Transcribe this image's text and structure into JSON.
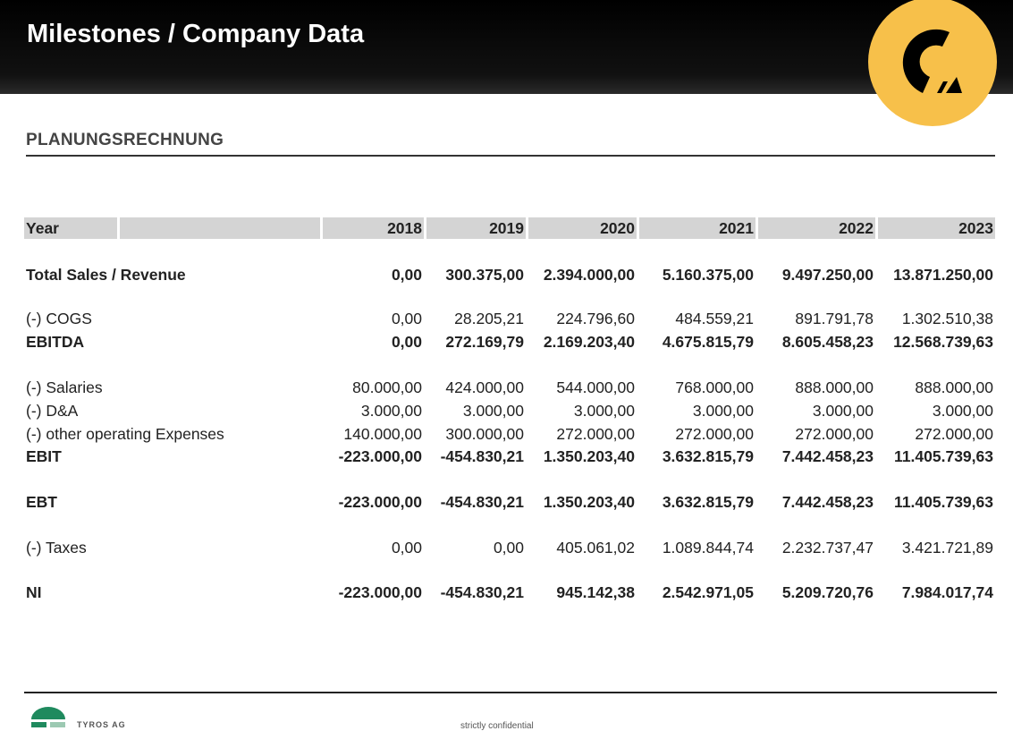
{
  "header": {
    "title": "Milestones / Company Data",
    "logo_color": "#f7c04a"
  },
  "section_title": "PLANUNGSRECHNUNG",
  "table": {
    "header_label": "Year",
    "years": [
      "2018",
      "2019",
      "2020",
      "2021",
      "2022",
      "2023"
    ],
    "rows": [
      {
        "label": "Total Sales / Revenue",
        "bold": true,
        "values": [
          "0,00",
          "300.375,00",
          "2.394.000,00",
          "5.160.375,00",
          "9.497.250,00",
          "13.871.250,00"
        ]
      },
      {
        "label": "(-) COGS",
        "bold": false,
        "values": [
          "0,00",
          "28.205,21",
          "224.796,60",
          "484.559,21",
          "891.791,78",
          "1.302.510,38"
        ]
      },
      {
        "label": "EBITDA",
        "bold": true,
        "values": [
          "0,00",
          "272.169,79",
          "2.169.203,40",
          "4.675.815,79",
          "8.605.458,23",
          "12.568.739,63"
        ]
      },
      {
        "label": "(-) Salaries",
        "bold": false,
        "values": [
          "80.000,00",
          "424.000,00",
          "544.000,00",
          "768.000,00",
          "888.000,00",
          "888.000,00"
        ]
      },
      {
        "label": "(-) D&A",
        "bold": false,
        "values": [
          "3.000,00",
          "3.000,00",
          "3.000,00",
          "3.000,00",
          "3.000,00",
          "3.000,00"
        ]
      },
      {
        "label": "(-) other operating Expenses",
        "bold": false,
        "values": [
          "140.000,00",
          "300.000,00",
          "272.000,00",
          "272.000,00",
          "272.000,00",
          "272.000,00"
        ]
      },
      {
        "label": "EBIT",
        "bold": true,
        "values": [
          "-223.000,00",
          "-454.830,21",
          "1.350.203,40",
          "3.632.815,79",
          "7.442.458,23",
          "11.405.739,63"
        ]
      },
      {
        "label": "EBT",
        "bold": true,
        "values": [
          "-223.000,00",
          "-454.830,21",
          "1.350.203,40",
          "3.632.815,79",
          "7.442.458,23",
          "11.405.739,63"
        ]
      },
      {
        "label": "(-) Taxes",
        "bold": false,
        "values": [
          "0,00",
          "0,00",
          "405.061,02",
          "1.089.844,74",
          "2.232.737,47",
          "3.421.721,89"
        ]
      },
      {
        "label": "NI",
        "bold": true,
        "values": [
          "-223.000,00",
          "-454.830,21",
          "945.142,38",
          "2.542.971,05",
          "5.209.720,76",
          "7.984.017,74"
        ]
      }
    ]
  },
  "footer": {
    "company": "TYROS AG",
    "confidential": "strictly confidential",
    "brand_color": "#1f8a5e"
  }
}
